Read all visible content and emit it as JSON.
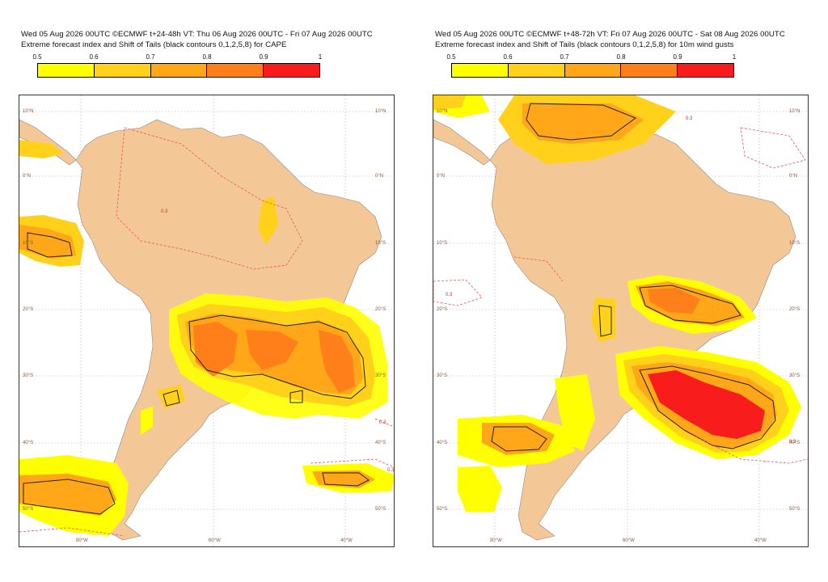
{
  "colors": {
    "land": "#f4c896",
    "ocean": "#ffffff",
    "bin_05": "#ffff00",
    "bin_06": "#ffd11a",
    "bin_07": "#ffa619",
    "bin_08": "#ff7f1a",
    "bin_09": "#f81c1c",
    "contour_dashed": "#ee5555",
    "contour_black": "#222222",
    "grid": "#aaaaaa"
  },
  "colorbar_ticks": [
    "0.5",
    "0.6",
    "0.7",
    "0.8",
    "0.9",
    "1"
  ],
  "panels": [
    {
      "title_line1": "Wed 05 Aug 2026 00UTC ©ECMWF t+24-48h  VT: Thu 06 Aug 2026 00UTC - Fri 07 Aug 2026 00UTC",
      "title_line2": "Extreme forecast index and Shift of Tails (black contours 0,1,2,5,8) for CAPE",
      "lon_labels": [
        "80°W",
        "60°W",
        "40°W"
      ],
      "lat_labels": [
        "10°N",
        "0°N",
        "10°S",
        "20°S",
        "30°S",
        "40°S",
        "50°S"
      ],
      "contour_label": "0.3"
    },
    {
      "title_line1": "Wed 05 Aug 2026 00UTC ©ECMWF t+48-72h  VT: Fri 07 Aug 2026 00UTC - Sat 08 Aug 2026 00UTC",
      "title_line2": "Extreme forecast index and Shift of Tails (black contours 0,1,2,5,8) for 10m wind gusts",
      "lon_labels": [
        "80°W",
        "60°W",
        "40°W"
      ],
      "lat_labels": [
        "10°N",
        "0°N",
        "10°S",
        "20°S",
        "30°S",
        "40°S",
        "50°S"
      ],
      "contour_label": "0.3"
    }
  ]
}
